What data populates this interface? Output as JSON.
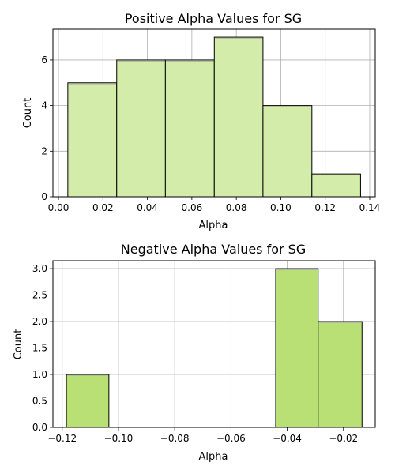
{
  "chart_data": [
    {
      "type": "bar",
      "title": "Positive Alpha Values for SG",
      "xlabel": "Alpha",
      "ylabel": "Count",
      "xlim": [
        -0.0025,
        0.1425
      ],
      "ylim": [
        0,
        7.35
      ],
      "xticks": [
        0.0,
        0.02,
        0.04,
        0.06,
        0.08,
        0.1,
        0.12,
        0.14
      ],
      "xtick_labels": [
        "0.00",
        "0.02",
        "0.04",
        "0.06",
        "0.08",
        "0.10",
        "0.12",
        "0.14"
      ],
      "yticks": [
        0,
        2,
        4,
        6
      ],
      "ytick_labels": [
        "0",
        "2",
        "4",
        "6"
      ],
      "grid": true,
      "bar_color": "#d3ecaa",
      "bins": [
        {
          "start": 0.0042,
          "end": 0.0262,
          "value": 5
        },
        {
          "start": 0.0262,
          "end": 0.0481,
          "value": 6
        },
        {
          "start": 0.0481,
          "end": 0.0701,
          "value": 6
        },
        {
          "start": 0.0701,
          "end": 0.092,
          "value": 7
        },
        {
          "start": 0.092,
          "end": 0.114,
          "value": 4
        },
        {
          "start": 0.114,
          "end": 0.1359,
          "value": 1
        }
      ]
    },
    {
      "type": "bar",
      "title": "Negative Alpha Values for SG",
      "xlabel": "Alpha",
      "ylabel": "Count",
      "xlim": [
        -0.1233,
        -0.0087
      ],
      "ylim": [
        0,
        3.15
      ],
      "xticks": [
        -0.12,
        -0.1,
        -0.08,
        -0.06,
        -0.04,
        -0.02
      ],
      "xtick_labels": [
        "−0.12",
        "−0.10",
        "−0.08",
        "−0.06",
        "−0.04",
        "−0.02"
      ],
      "yticks": [
        0.0,
        0.5,
        1.0,
        1.5,
        2.0,
        2.5,
        3.0
      ],
      "ytick_labels": [
        "0.0",
        "0.5",
        "1.0",
        "1.5",
        "2.0",
        "2.5",
        "3.0"
      ],
      "grid": true,
      "bar_color": "#b8e075",
      "bins": [
        {
          "start": -0.1185,
          "end": -0.1034,
          "value": 1
        },
        {
          "start": -0.1034,
          "end": -0.0883,
          "value": 0
        },
        {
          "start": -0.0883,
          "end": -0.0733,
          "value": 0
        },
        {
          "start": -0.0733,
          "end": -0.0582,
          "value": 0
        },
        {
          "start": -0.0582,
          "end": -0.0441,
          "value": 0
        },
        {
          "start": -0.0441,
          "end": -0.029,
          "value": 3
        },
        {
          "start": -0.029,
          "end": -0.0134,
          "value": 2
        }
      ]
    }
  ]
}
